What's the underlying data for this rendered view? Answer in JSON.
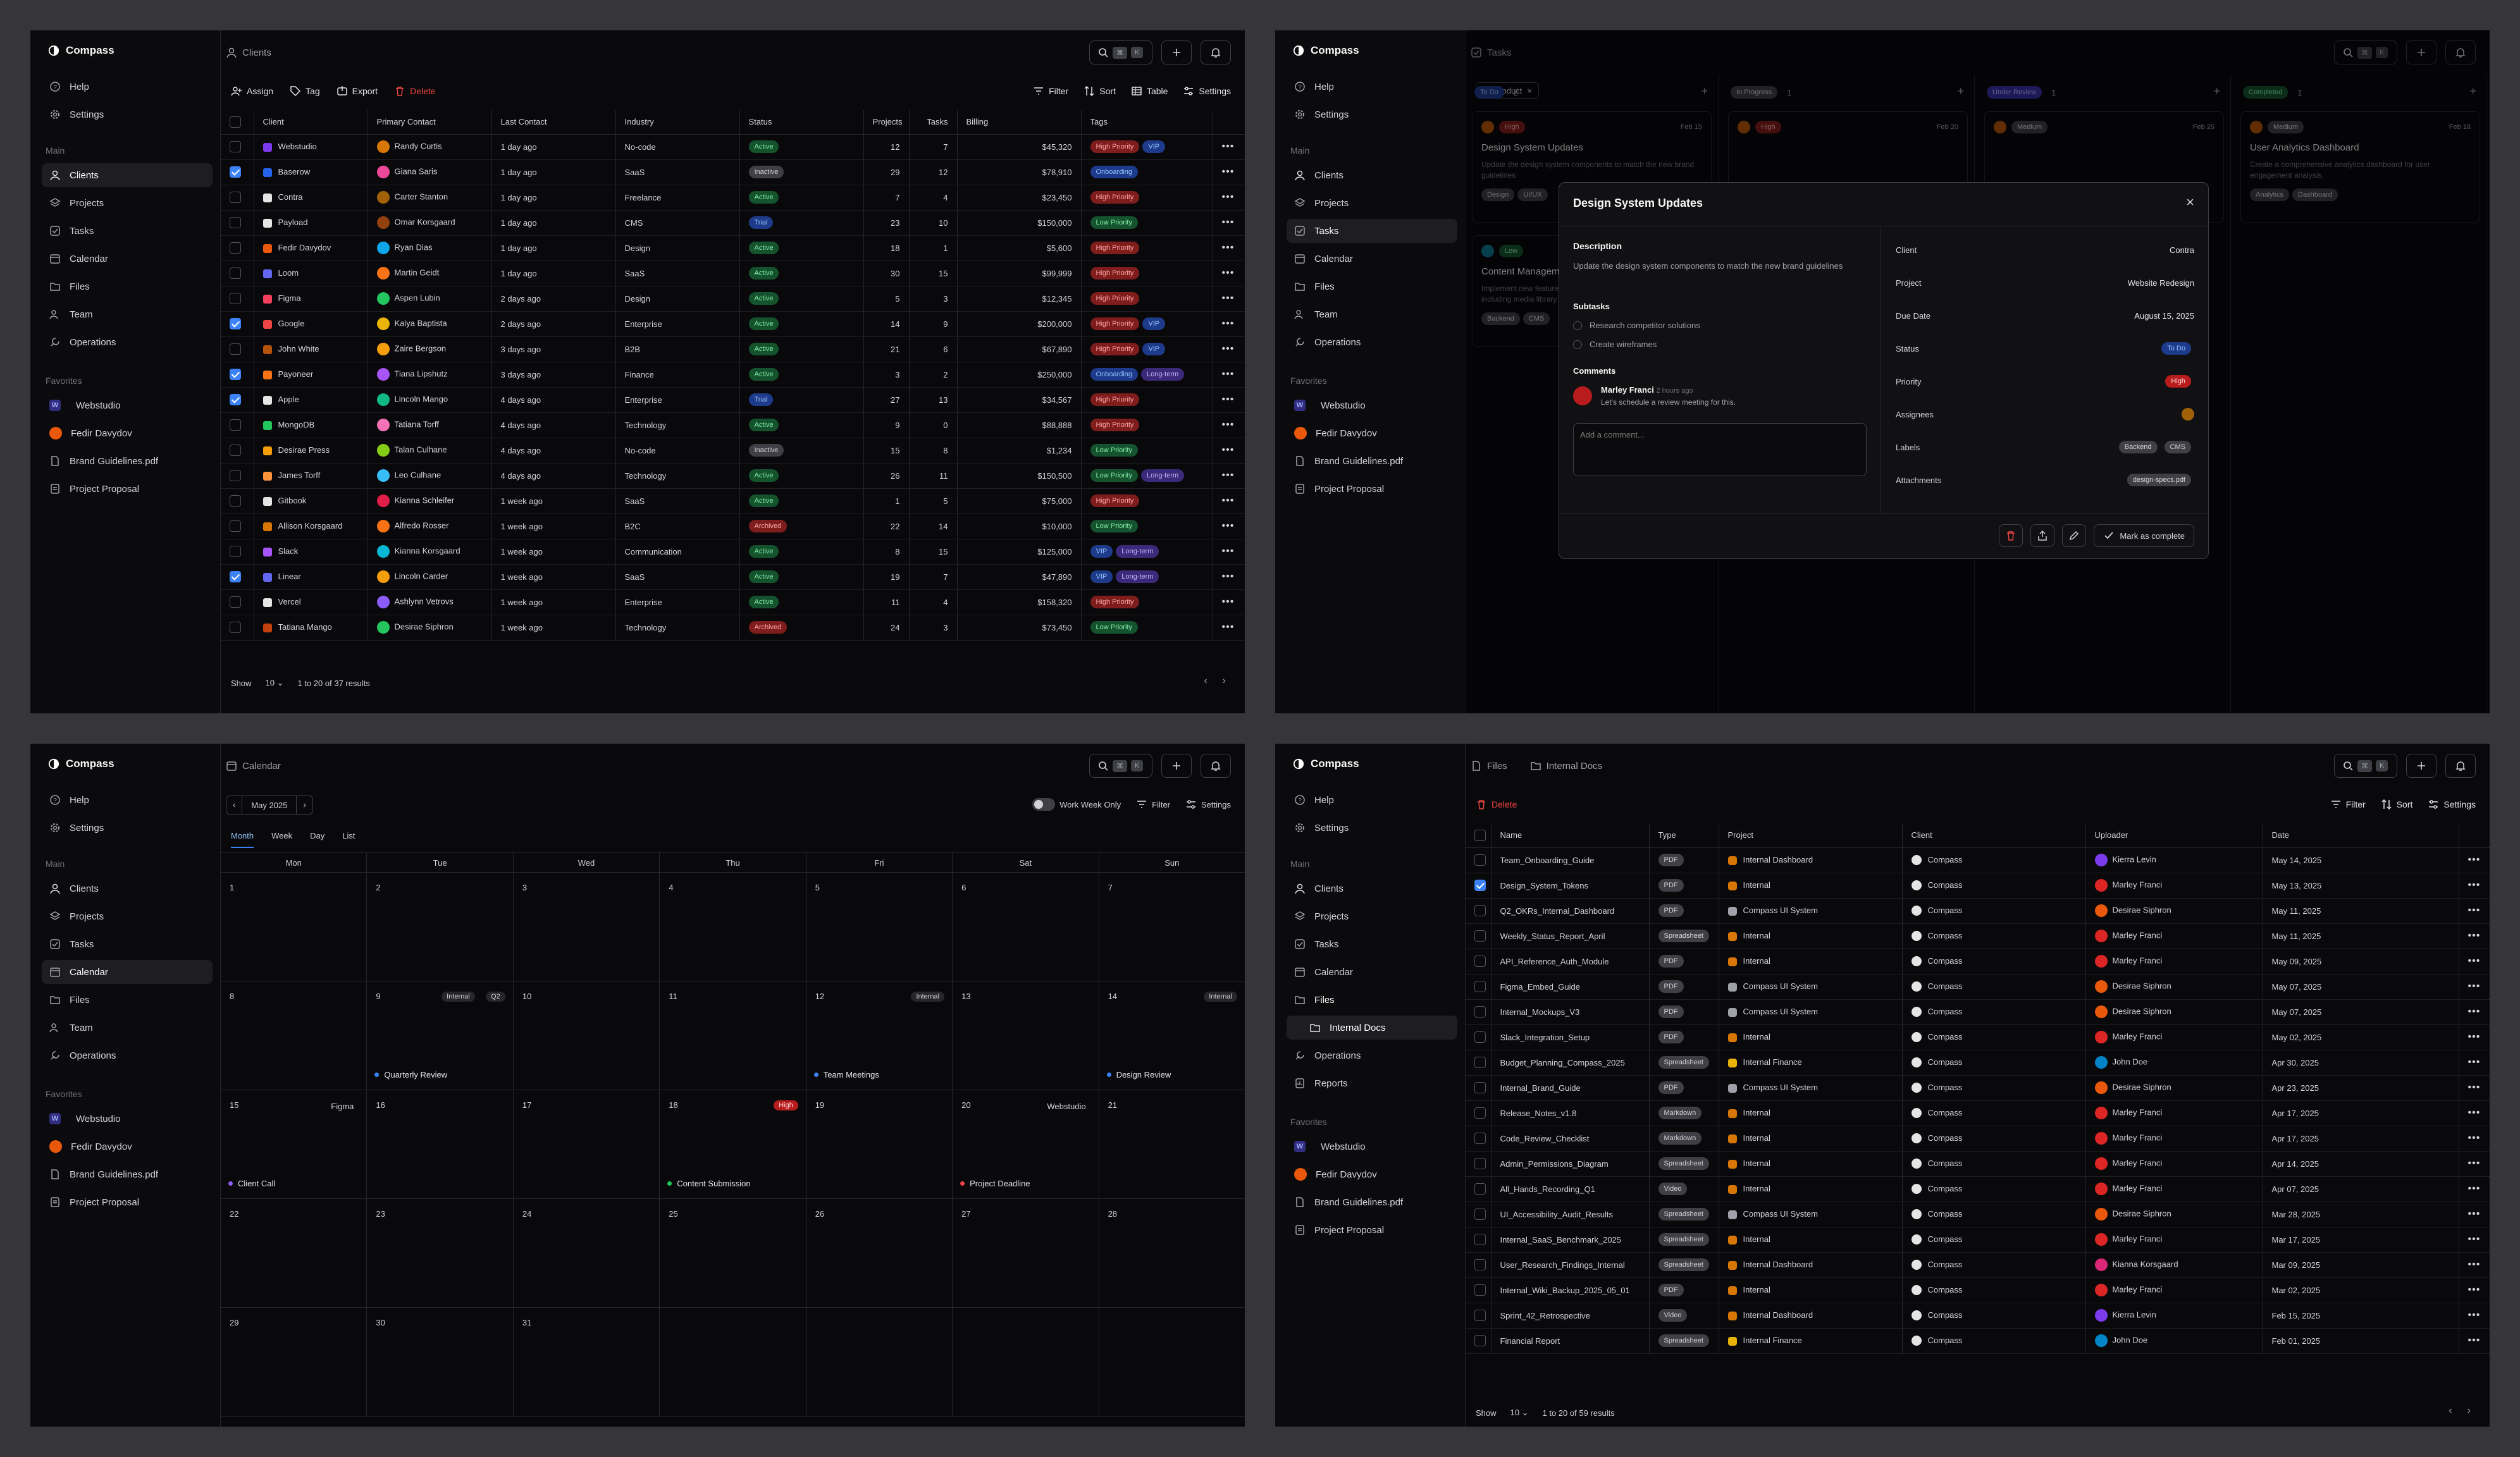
{
  "app": {
    "name": "Compass"
  },
  "nav": {
    "help": "Help",
    "settings": "Settings",
    "main": "Main",
    "clients": "Clients",
    "projects": "Projects",
    "tasks": "Tasks",
    "calendar": "Calendar",
    "files": "Files",
    "team": "Team",
    "operations": "Operations",
    "reports": "Reports",
    "favorites": "Favorites",
    "fav1": "Webstudio",
    "fav2": "Fedir Davydov",
    "fav3": "Brand Guidelines.pdf",
    "fav4": "Project Proposal",
    "internal_docs": "Internal Docs"
  },
  "kbd": {
    "k1": "⌘",
    "k2": "K"
  },
  "clients": {
    "title": "Clients",
    "actions": {
      "assign": "Assign",
      "tag": "Tag",
      "export": "Export",
      "delete": "Delete",
      "filter": "Filter",
      "sort": "Sort",
      "table": "Table",
      "settings": "Settings"
    },
    "columns": [
      "Client",
      "Primary Contact",
      "Last Contact",
      "Industry",
      "Status",
      "Projects",
      "Tasks",
      "Billing",
      "Tags"
    ],
    "rows": [
      {
        "c": "Webstudio",
        "p": "Randy Curtis",
        "l": "1 day ago",
        "i": "No-code",
        "s": "Active",
        "pr": "12",
        "t": "7",
        "b": "$45,320",
        "tags": [
          "High Priority",
          "VIP"
        ],
        "chk": false,
        "col": "#7c3aed",
        "av": "#d97706"
      },
      {
        "c": "Baserow",
        "p": "Giana Saris",
        "l": "1 day ago",
        "i": "SaaS",
        "s": "Inactive",
        "pr": "29",
        "t": "12",
        "b": "$78,910",
        "tags": [
          "Onboarding"
        ],
        "chk": true,
        "col": "#2563eb",
        "av": "#ec4899"
      },
      {
        "c": "Contra",
        "p": "Carter Stanton",
        "l": "1 day ago",
        "i": "Freelance",
        "s": "Active",
        "pr": "7",
        "t": "4",
        "b": "$23,450",
        "tags": [
          "High Priority"
        ],
        "chk": false,
        "col": "#e5e5e5",
        "av": "#a16207"
      },
      {
        "c": "Payload",
        "p": "Omar Korsgaard",
        "l": "1 day ago",
        "i": "CMS",
        "s": "Trial",
        "pr": "23",
        "t": "10",
        "b": "$150,000",
        "tags": [
          "Low Priority"
        ],
        "chk": false,
        "col": "#e5e5e5",
        "av": "#92400e"
      },
      {
        "c": "Fedir Davydov",
        "p": "Ryan Dias",
        "l": "1 day ago",
        "i": "Design",
        "s": "Active",
        "pr": "18",
        "t": "1",
        "b": "$5,600",
        "tags": [
          "High Priority"
        ],
        "chk": false,
        "col": "#ea580c",
        "av": "#0ea5e9"
      },
      {
        "c": "Loom",
        "p": "Martin Geidt",
        "l": "1 day ago",
        "i": "SaaS",
        "s": "Active",
        "pr": "30",
        "t": "15",
        "b": "$99,999",
        "tags": [
          "High Priority"
        ],
        "chk": false,
        "col": "#6366f1",
        "av": "#f97316"
      },
      {
        "c": "Figma",
        "p": "Aspen Lubin",
        "l": "2 days ago",
        "i": "Design",
        "s": "Active",
        "pr": "5",
        "t": "3",
        "b": "$12,345",
        "tags": [
          "High Priority"
        ],
        "chk": false,
        "col": "#f43f5e",
        "av": "#22c55e"
      },
      {
        "c": "Google",
        "p": "Kaiya Baptista",
        "l": "2 days ago",
        "i": "Enterprise",
        "s": "Active",
        "pr": "14",
        "t": "9",
        "b": "$200,000",
        "tags": [
          "High Priority",
          "VIP"
        ],
        "chk": true,
        "col": "#ef4444",
        "av": "#eab308"
      },
      {
        "c": "John White",
        "p": "Zaire Bergson",
        "l": "3 days ago",
        "i": "B2B",
        "s": "Active",
        "pr": "21",
        "t": "6",
        "b": "$67,890",
        "tags": [
          "High Priority",
          "VIP"
        ],
        "chk": false,
        "col": "#b45309",
        "av": "#f59e0b"
      },
      {
        "c": "Payoneer",
        "p": "Tiana Lipshutz",
        "l": "3 days ago",
        "i": "Finance",
        "s": "Active",
        "pr": "3",
        "t": "2",
        "b": "$250,000",
        "tags": [
          "Onboarding",
          "Long-term"
        ],
        "chk": true,
        "col": "#f97316",
        "av": "#a855f7"
      },
      {
        "c": "Apple",
        "p": "Lincoln Mango",
        "l": "4 days ago",
        "i": "Enterprise",
        "s": "Trial",
        "pr": "27",
        "t": "13",
        "b": "$34,567",
        "tags": [
          "High Priority"
        ],
        "chk": true,
        "col": "#e5e5e5",
        "av": "#10b981"
      },
      {
        "c": "MongoDB",
        "p": "Tatiana Torff",
        "l": "4 days ago",
        "i": "Technology",
        "s": "Active",
        "pr": "9",
        "t": "0",
        "b": "$88,888",
        "tags": [
          "High Priority"
        ],
        "chk": false,
        "col": "#22c55e",
        "av": "#f472b6"
      },
      {
        "c": "Desirae Press",
        "p": "Talan Culhane",
        "l": "4 days ago",
        "i": "No-code",
        "s": "Inactive",
        "pr": "15",
        "t": "8",
        "b": "$1,234",
        "tags": [
          "Low Priority"
        ],
        "chk": false,
        "col": "#f59e0b",
        "av": "#84cc16"
      },
      {
        "c": "James Torff",
        "p": "Leo Culhane",
        "l": "4 days ago",
        "i": "Technology",
        "s": "Active",
        "pr": "26",
        "t": "11",
        "b": "$150,500",
        "tags": [
          "Low Priority",
          "Long-term"
        ],
        "chk": false,
        "col": "#fb923c",
        "av": "#38bdf8"
      },
      {
        "c": "Gitbook",
        "p": "Kianna Schleifer",
        "l": "1 week ago",
        "i": "SaaS",
        "s": "Active",
        "pr": "1",
        "t": "5",
        "b": "$75,000",
        "tags": [
          "High Priority"
        ],
        "chk": false,
        "col": "#e5e5e5",
        "av": "#e11d48"
      },
      {
        "c": "Allison Korsgaard",
        "p": "Alfredo Rosser",
        "l": "1 week ago",
        "i": "B2C",
        "s": "Archived",
        "pr": "22",
        "t": "14",
        "b": "$10,000",
        "tags": [
          "Low Priority"
        ],
        "chk": false,
        "col": "#d97706",
        "av": "#f97316"
      },
      {
        "c": "Slack",
        "p": "Kianna Korsgaard",
        "l": "1 week ago",
        "i": "Communication",
        "s": "Active",
        "pr": "8",
        "t": "15",
        "b": "$125,000",
        "tags": [
          "VIP",
          "Long-term"
        ],
        "chk": false,
        "col": "#a855f7",
        "av": "#06b6d4"
      },
      {
        "c": "Linear",
        "p": "Lincoln Carder",
        "l": "1 week ago",
        "i": "SaaS",
        "s": "Active",
        "pr": "19",
        "t": "7",
        "b": "$47,890",
        "tags": [
          "VIP",
          "Long-term"
        ],
        "chk": true,
        "col": "#6366f1",
        "av": "#f59e0b"
      },
      {
        "c": "Vercel",
        "p": "Ashlynn Vetrovs",
        "l": "1 week ago",
        "i": "Enterprise",
        "s": "Active",
        "pr": "11",
        "t": "4",
        "b": "$158,320",
        "tags": [
          "High Priority"
        ],
        "chk": false,
        "col": "#e5e5e5",
        "av": "#8b5cf6"
      },
      {
        "c": "Tatiana Mango",
        "p": "Desirae Siphron",
        "l": "1 week ago",
        "i": "Technology",
        "s": "Archived",
        "pr": "24",
        "t": "3",
        "b": "$73,450",
        "tags": [
          "Low Priority"
        ],
        "chk": false,
        "col": "#c2410c",
        "av": "#22c55e"
      }
    ],
    "footer": {
      "show": "Show",
      "per_page": "10",
      "results": "1 to 20 of 37 results"
    }
  },
  "tasks": {
    "title": "Tasks",
    "filter_chip": "Product",
    "columns": [
      {
        "name": "To Do",
        "count": "2",
        "card_pri": "High",
        "card_date": "Feb 15",
        "card_title": "Design System Updates",
        "card_desc": "Update the design system components to match the new brand guidelines",
        "tags": [
          "Design",
          "UI/UX"
        ],
        "card2_pri": "Low",
        "card2_title": "Content Management",
        "card2_desc": "Implement new features for the content management system including media library",
        "card2_tags": [
          "Backend",
          "CMS"
        ]
      },
      {
        "name": "In Progress",
        "count": "1",
        "card_pri": "High",
        "card_date": "Feb 20",
        "card_title": "",
        "card_desc": "",
        "tags": []
      },
      {
        "name": "Under Review",
        "count": "1",
        "card_pri": "Medium",
        "card_date": "Feb 25",
        "card_title": "",
        "card_desc": "",
        "tags": []
      },
      {
        "name": "Completed",
        "count": "1",
        "card_pri": "Medium",
        "card_date": "Feb 18",
        "card_title": "User Analytics Dashboard",
        "card_desc": "Create a comprehensive analytics dashboard for user engagement analysis.",
        "tags": [
          "Analytics",
          "Dashboard"
        ]
      }
    ],
    "modal": {
      "title": "Design System Updates",
      "desc_label": "Description",
      "desc": "Update the design system components to match the new brand guidelines",
      "subtasks_label": "Subtasks",
      "subtasks": [
        "Research competitor solutions",
        "Create wireframes"
      ],
      "comments_label": "Comments",
      "comment_author": "Marley Franci",
      "comment_time": "2 hours ago",
      "comment_text": "Let's schedule a review meeting for this.",
      "comment_placeholder": "Add a comment...",
      "fields": {
        "client_l": "Client",
        "client": "Contra",
        "project_l": "Project",
        "project": "Website Redesign",
        "due_l": "Due Date",
        "due": "August 15, 2025",
        "status_l": "Status",
        "status": "To Do",
        "priority_l": "Priority",
        "priority": "High",
        "assignees_l": "Assignees",
        "labels_l": "Labels",
        "labels": [
          "Backend",
          "CMS"
        ],
        "attach_l": "Attachments",
        "attach": "design-specs.pdf"
      },
      "complete": "Mark as complete"
    }
  },
  "calendar": {
    "title": "Calendar",
    "month": "May 2025",
    "work_week": "Work Week Only",
    "filter": "Filter",
    "settings": "Settings",
    "views": [
      "Month",
      "Week",
      "Day",
      "List"
    ],
    "weekdays": [
      "Mon",
      "Tue",
      "Wed",
      "Thu",
      "Fri",
      "Sat",
      "Sun"
    ],
    "events": {
      "e9": "Quarterly Review",
      "t9a": "Internal",
      "t9b": "Q2",
      "t12": "Internal",
      "e12": "Team Meetings",
      "t14": "Internal",
      "e14": "Design Review",
      "t15": "Figma",
      "e15": "Client Call",
      "t18": "High",
      "e18": "Content Submission",
      "t20": "Webstudio",
      "e20": "Project Deadline"
    }
  },
  "files": {
    "title": "Files",
    "folder": "Internal Docs",
    "delete": "Delete",
    "filter": "Filter",
    "sort": "Sort",
    "settings": "Settings",
    "columns": [
      "Name",
      "Type",
      "Project",
      "Client",
      "Uploader",
      "Date"
    ],
    "rows": [
      {
        "n": "Team_Onboarding_Guide",
        "t": "PDF",
        "p": "Internal Dashboard",
        "c": "Compass",
        "u": "Kierra Levin",
        "d": "May 14, 2025",
        "chk": false
      },
      {
        "n": "Design_System_Tokens",
        "t": "PDF",
        "p": "Internal",
        "c": "Compass",
        "u": "Marley Franci",
        "d": "May 13, 2025",
        "chk": true
      },
      {
        "n": "Q2_OKRs_Internal_Dashboard",
        "t": "PDF",
        "p": "Compass UI System",
        "c": "Compass",
        "u": "Desirae Siphron",
        "d": "May 11, 2025",
        "chk": false
      },
      {
        "n": "Weekly_Status_Report_April",
        "t": "Spreadsheet",
        "p": "Internal",
        "c": "Compass",
        "u": "Marley Franci",
        "d": "May 11, 2025",
        "chk": false
      },
      {
        "n": "API_Reference_Auth_Module",
        "t": "PDF",
        "p": "Internal",
        "c": "Compass",
        "u": "Marley Franci",
        "d": "May 09, 2025",
        "chk": false
      },
      {
        "n": "Figma_Embed_Guide",
        "t": "PDF",
        "p": "Compass UI System",
        "c": "Compass",
        "u": "Desirae Siphron",
        "d": "May 07, 2025",
        "chk": false
      },
      {
        "n": "Internal_Mockups_V3",
        "t": "PDF",
        "p": "Compass UI System",
        "c": "Compass",
        "u": "Desirae Siphron",
        "d": "May 07, 2025",
        "chk": false
      },
      {
        "n": "Slack_Integration_Setup",
        "t": "PDF",
        "p": "Internal",
        "c": "Compass",
        "u": "Marley Franci",
        "d": "May 02, 2025",
        "chk": false
      },
      {
        "n": "Budget_Planning_Compass_2025",
        "t": "Spreadsheet",
        "p": "Internal Finance",
        "c": "Compass",
        "u": "John Doe",
        "d": "Apr 30, 2025",
        "chk": false
      },
      {
        "n": "Internal_Brand_Guide",
        "t": "PDF",
        "p": "Compass UI System",
        "c": "Compass",
        "u": "Desirae Siphron",
        "d": "Apr 23, 2025",
        "chk": false
      },
      {
        "n": "Release_Notes_v1.8",
        "t": "Markdown",
        "p": "Internal",
        "c": "Compass",
        "u": "Marley Franci",
        "d": "Apr 17, 2025",
        "chk": false
      },
      {
        "n": "Code_Review_Checklist",
        "t": "Markdown",
        "p": "Internal",
        "c": "Compass",
        "u": "Marley Franci",
        "d": "Apr 17, 2025",
        "chk": false
      },
      {
        "n": "Admin_Permissions_Diagram",
        "t": "Spreadsheet",
        "p": "Internal",
        "c": "Compass",
        "u": "Marley Franci",
        "d": "Apr 14, 2025",
        "chk": false
      },
      {
        "n": "All_Hands_Recording_Q1",
        "t": "Video",
        "p": "Internal",
        "c": "Compass",
        "u": "Marley Franci",
        "d": "Apr 07, 2025",
        "chk": false
      },
      {
        "n": "UI_Accessibility_Audit_Results",
        "t": "Spreadsheet",
        "p": "Compass UI System",
        "c": "Compass",
        "u": "Desirae Siphron",
        "d": "Mar 28, 2025",
        "chk": false
      },
      {
        "n": "Internal_SaaS_Benchmark_2025",
        "t": "Spreadsheet",
        "p": "Internal",
        "c": "Compass",
        "u": "Marley Franci",
        "d": "Mar 17, 2025",
        "chk": false
      },
      {
        "n": "User_Research_Findings_Internal",
        "t": "Spreadsheet",
        "p": "Internal Dashboard",
        "c": "Compass",
        "u": "Kianna Korsgaard",
        "d": "Mar 09, 2025",
        "chk": false
      },
      {
        "n": "Internal_Wiki_Backup_2025_05_01",
        "t": "PDF",
        "p": "Internal",
        "c": "Compass",
        "u": "Marley Franci",
        "d": "Mar 02, 2025",
        "chk": false
      },
      {
        "n": "Sprint_42_Retrospective",
        "t": "Video",
        "p": "Internal Dashboard",
        "c": "Compass",
        "u": "Kierra Levin",
        "d": "Feb 15, 2025",
        "chk": false
      },
      {
        "n": "Financial Report",
        "t": "Spreadsheet",
        "p": "Internal Finance",
        "c": "Compass",
        "u": "John Doe",
        "d": "Feb 01, 2025",
        "chk": false
      }
    ],
    "footer": {
      "show": "Show",
      "per_page": "10",
      "results": "1 to 20 of 59 results"
    }
  }
}
